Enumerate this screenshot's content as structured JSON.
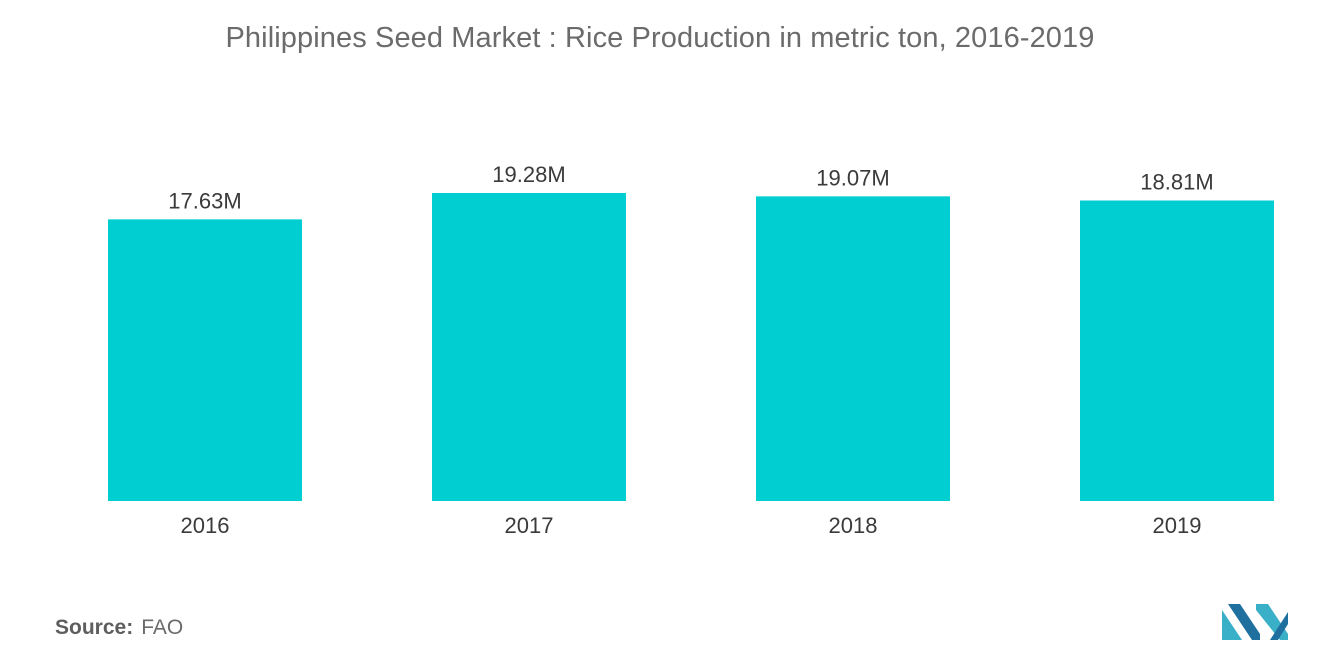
{
  "chart_data": {
    "type": "bar",
    "title": "Philippines Seed Market : Rice Production in metric ton, 2016-2019",
    "categories": [
      "2016",
      "2017",
      "2018",
      "2019"
    ],
    "values": [
      17.63,
      19.28,
      19.07,
      18.81
    ],
    "value_labels": [
      "17.63M",
      "19.28M",
      "19.07M",
      "18.81M"
    ],
    "xlabel": "",
    "ylabel": "",
    "ylim": [
      0,
      19.28
    ],
    "grid": false,
    "legend": "none",
    "bar_color": "#00CED1"
  },
  "source": {
    "label": "Source:",
    "value": "FAO"
  },
  "logo": {
    "icon": "mordor-intelligence-logo",
    "colors": [
      "#3ab0c8",
      "#1f6f9f"
    ]
  }
}
